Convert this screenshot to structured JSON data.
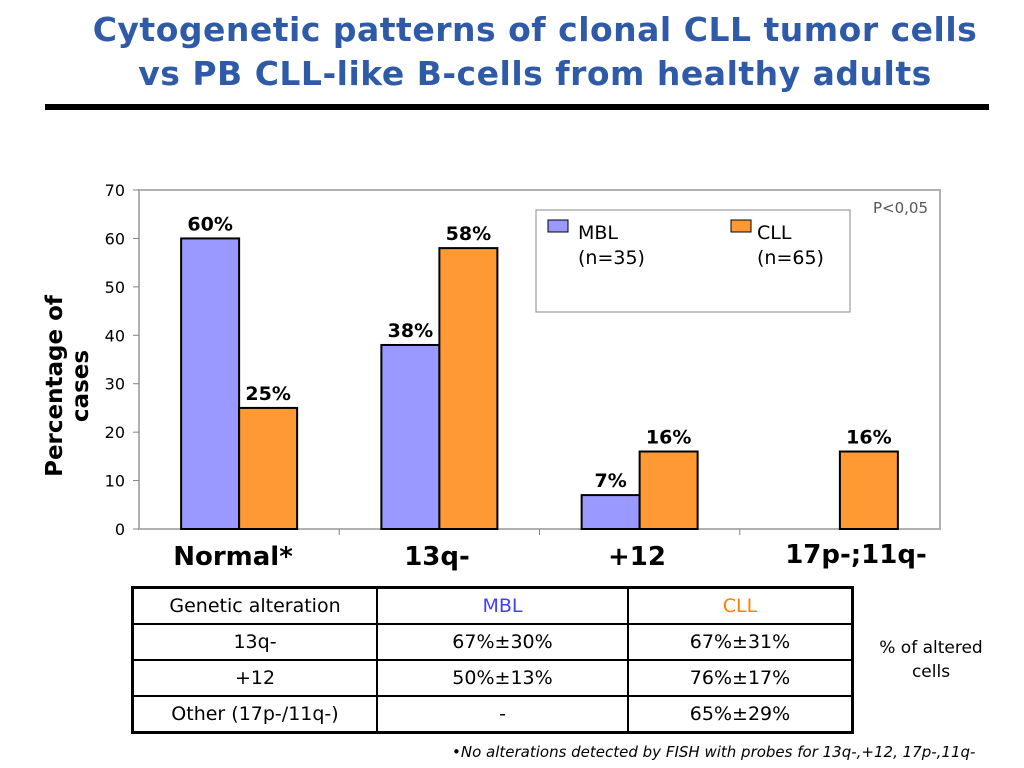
{
  "slide": {
    "title_line1": "Cytogenetic patterns of clonal CLL tumor cells",
    "title_line2": "vs PB CLL-like B-cells from healthy adults",
    "footnote": "•No alterations detected by FISH with probes for 13q-,+12, 17p-,11q-",
    "side_note_line1": "% of altered",
    "side_note_line2": "cells"
  },
  "chart_data": {
    "type": "bar",
    "title": "",
    "xlabel": "",
    "ylabel": "Percentage of cases",
    "ylim": [
      0,
      70
    ],
    "yticks": [
      0,
      10,
      20,
      30,
      40,
      50,
      60,
      70
    ],
    "categories": [
      "Normal*",
      "13q-",
      "+12",
      "17p-;11q-"
    ],
    "series": [
      {
        "name": "MBL",
        "legend_line1": "MBL",
        "legend_line2": "(n=35)",
        "color": "#9999ff",
        "values": [
          60,
          38,
          7,
          null
        ],
        "labels": [
          "60%",
          "38%",
          "7%",
          null
        ]
      },
      {
        "name": "CLL",
        "legend_line1": "CLL",
        "legend_line2": "(n=65)",
        "color": "#ff9933",
        "values": [
          25,
          58,
          16,
          16
        ],
        "labels": [
          "25%",
          "58%",
          "16%",
          "16%"
        ]
      }
    ],
    "annotation": "P<0,05",
    "grid": false,
    "legend_position": "top-right"
  },
  "table": {
    "headers": [
      "Genetic alteration",
      "MBL",
      "CLL"
    ],
    "rows": [
      [
        "13q-",
        "67%±30%",
        "67%±31%"
      ],
      [
        "+12",
        "50%±13%",
        "76%±17%"
      ],
      [
        "Other (17p-/11q-)",
        "-",
        "65%±29%"
      ]
    ]
  },
  "colors": {
    "title": "#2e5aa8",
    "mbl_text": "#4040ff",
    "cll_text": "#ff8000"
  }
}
